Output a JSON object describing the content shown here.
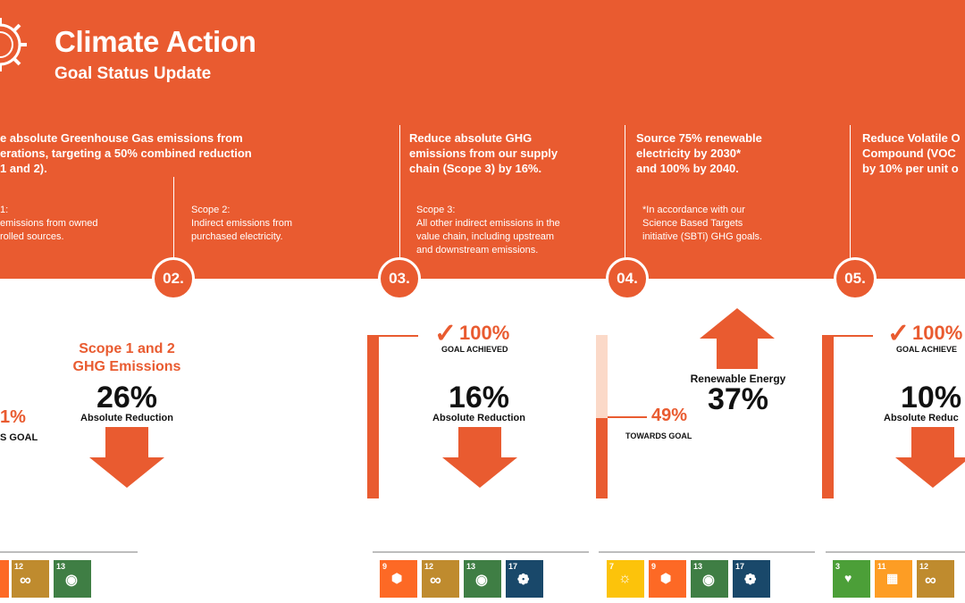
{
  "header": {
    "title": "Climate Action",
    "subtitle": "Goal Status Update"
  },
  "goals": [
    {
      "text": [
        "e absolute Greenhouse Gas emissions from",
        "erations, targeting a 50% combined reduction",
        "1 and 2)."
      ],
      "scope_a": [
        "1:",
        "emissions from owned",
        "rolled sources."
      ],
      "scope_b": [
        "Scope 2:",
        "Indirect emissions from",
        "purchased electricity."
      ],
      "number": "02.",
      "left_pct": "1%",
      "left_label": "S GOAL",
      "heading": [
        "Scope 1 and 2",
        "GHG Emissions"
      ],
      "value": "26%",
      "value_label": "Absolute Reduction",
      "sdgs": [
        "12",
        "13"
      ]
    },
    {
      "text": [
        "Reduce absolute GHG",
        "emissions from our supply",
        "chain (Scope 3) by 16%."
      ],
      "scope": [
        "Scope 3:",
        "All other indirect emissions in the",
        "value chain, including upstream",
        "and downstream emissions."
      ],
      "number": "03.",
      "achieved": "100%",
      "achieved_label": "GOAL ACHIEVED",
      "value": "16%",
      "value_label": "Absolute Reduction",
      "sdgs": [
        "9",
        "12",
        "13",
        "17"
      ]
    },
    {
      "text": [
        "Source 75% renewable",
        "electricity by 2030*",
        "and 100% by 2040."
      ],
      "note": [
        "*In accordance with our",
        "Science Based Targets",
        "initiative (SBTi) GHG goals."
      ],
      "number": "04.",
      "progress": 0.49,
      "progress_text": "49%",
      "progress_label": "TOWARDS GOAL",
      "heading": "Renewable Energy",
      "value": "37%",
      "sdgs": [
        "7",
        "9",
        "13",
        "17"
      ]
    },
    {
      "text": [
        "Reduce Volatile O",
        "Compound (VOC",
        "by 10% per unit o"
      ],
      "number": "05.",
      "achieved": "100%",
      "achieved_label": "GOAL ACHIEVE",
      "value": "10%",
      "value_label": "Absolute Reduc",
      "sdgs": [
        "3",
        "11",
        "12"
      ]
    }
  ],
  "colors": {
    "brand": "#e95b30",
    "sdg3": "#4c9f38",
    "sdg7": "#fcc30b",
    "sdg9": "#fd6925",
    "sdg11": "#fd9d24",
    "sdg12": "#bf8b2e",
    "sdg13": "#3f7e44",
    "sdg17": "#19486a"
  }
}
